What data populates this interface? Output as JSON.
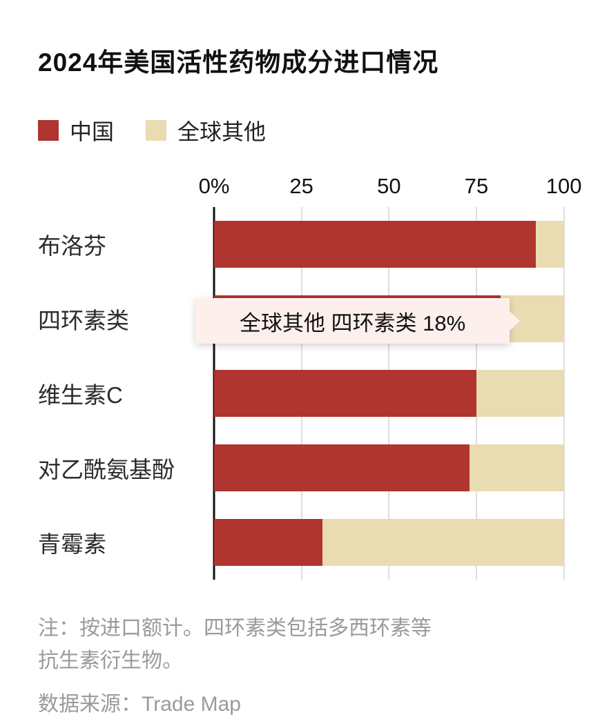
{
  "header": {
    "title": "2024年美国活性药物成分进口情况"
  },
  "legend": [
    {
      "label": "中国",
      "color": "#b0342f"
    },
    {
      "label": "全球其他",
      "color": "#e9dcb2"
    }
  ],
  "chart_data": {
    "type": "bar",
    "orientation": "horizontal",
    "stacked": true,
    "title": "2024年美国活性药物成分进口情况",
    "categories": [
      "布洛芬",
      "四环素类",
      "维生素C",
      "对乙酰氨基酚",
      "青霉素"
    ],
    "series": [
      {
        "name": "中国",
        "color": "#b0342f",
        "values": [
          92,
          82,
          75,
          73,
          31
        ]
      },
      {
        "name": "全球其他",
        "color": "#e9dcb2",
        "values": [
          8,
          18,
          25,
          27,
          69
        ]
      }
    ],
    "x_ticks": [
      "0%",
      "25",
      "50",
      "75",
      "100"
    ],
    "x_tick_values": [
      0,
      25,
      50,
      75,
      100
    ],
    "xlim": [
      0,
      105
    ],
    "grid": true,
    "legend_position": "top",
    "unit": "%"
  },
  "tooltip": {
    "text": "全球其他 四环素类 18%",
    "row": "四环素类"
  },
  "notes": {
    "line1": "注：按进口额计。四环素类包括多西环素等",
    "line2": "抗生素衍生物。",
    "source": "数据来源：Trade Map"
  },
  "colors": {
    "china": "#b0342f",
    "rest_of_world": "#e9dcb2",
    "gridline": "#dedede",
    "axis": "#111111",
    "note_text": "#9a9a9a",
    "tooltip_bg": "#fdefec"
  }
}
